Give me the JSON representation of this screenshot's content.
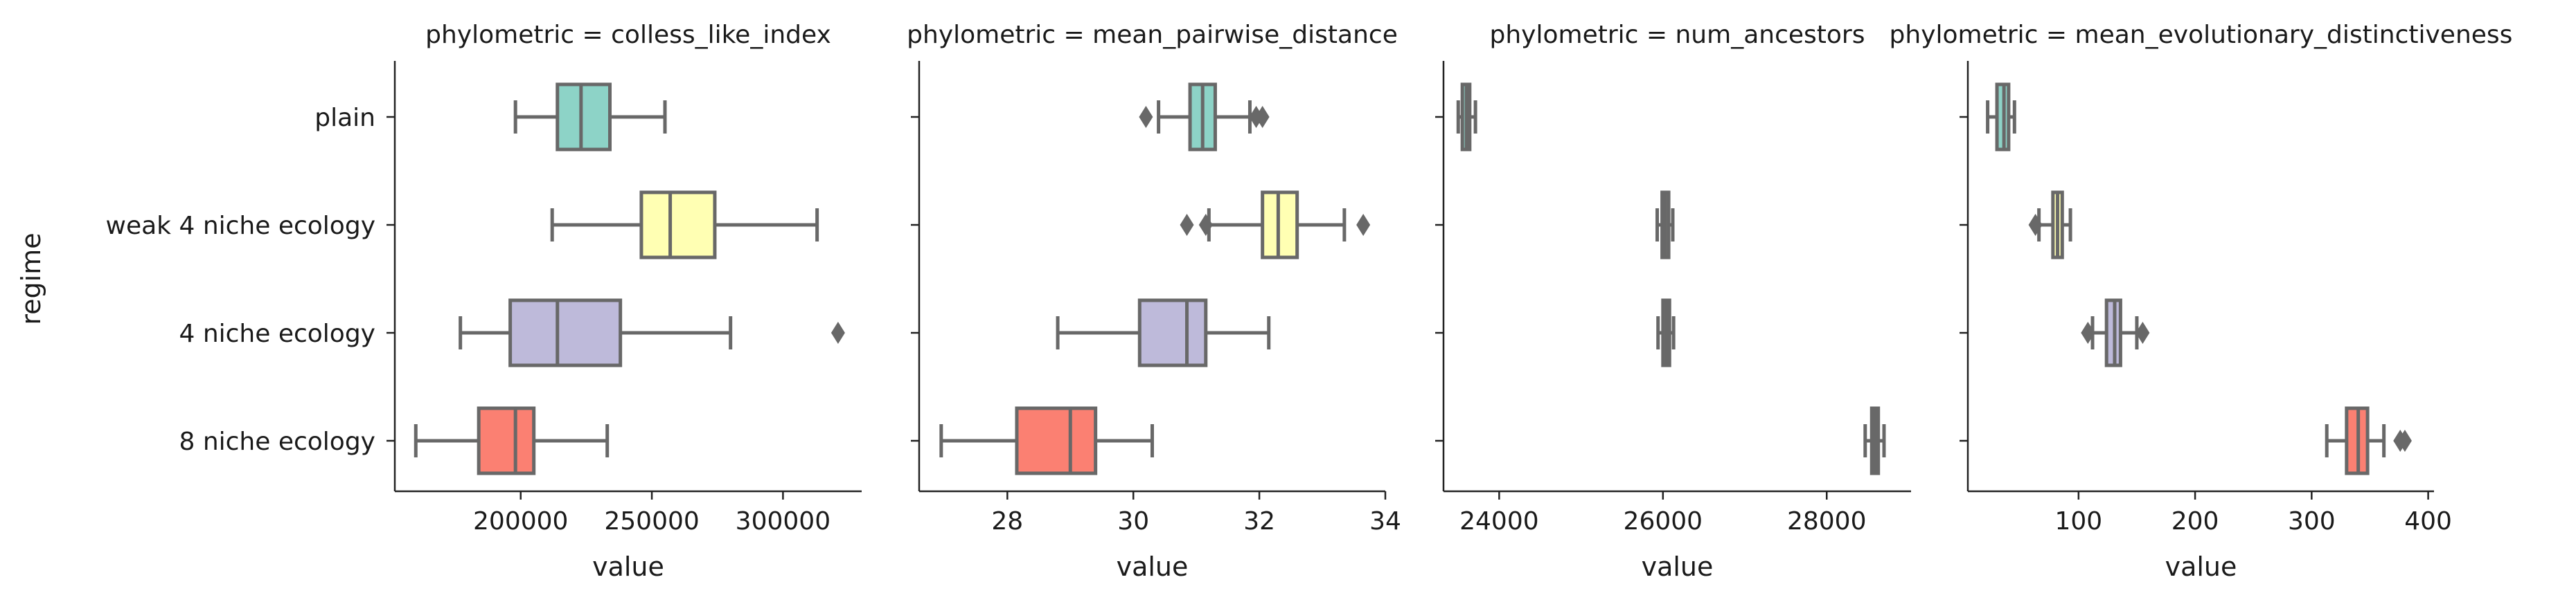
{
  "figure": {
    "ylabel": "regime",
    "xlabel": "value"
  },
  "chart_data": [
    {
      "type": "box",
      "title": "phylometric = colless_like_index",
      "xlabel": "value",
      "ylabel": "regime",
      "categories": [
        "plain",
        "weak 4 niche ecology",
        "4 niche ecology",
        "8 niche ecology"
      ],
      "colors": [
        "#8dd3c7",
        "#ffffb3",
        "#bebada",
        "#fb8072"
      ],
      "xlim": [
        152000,
        330000
      ],
      "xticks": [
        200000,
        250000,
        300000
      ],
      "xtick_labels": [
        "200000",
        "250000",
        "300000"
      ],
      "boxes": [
        {
          "whislo": 198000,
          "q1": 214000,
          "med": 223000,
          "q3": 234000,
          "whishi": 255000,
          "fliers": []
        },
        {
          "whislo": 212000,
          "q1": 246000,
          "med": 257000,
          "q3": 274000,
          "whishi": 313000,
          "fliers": []
        },
        {
          "whislo": 177000,
          "q1": 196000,
          "med": 214000,
          "q3": 238000,
          "whishi": 280000,
          "fliers": [
            321000
          ]
        },
        {
          "whislo": 160000,
          "q1": 184000,
          "med": 198000,
          "q3": 205000,
          "whishi": 233000,
          "fliers": []
        }
      ]
    },
    {
      "type": "box",
      "title": "phylometric = mean_pairwise_distance",
      "xlabel": "value",
      "categories": [
        "plain",
        "weak 4 niche ecology",
        "4 niche ecology",
        "8 niche ecology"
      ],
      "colors": [
        "#8dd3c7",
        "#ffffb3",
        "#bebada",
        "#fb8072"
      ],
      "xlim": [
        26.6,
        34.0
      ],
      "xticks": [
        28,
        30,
        32,
        34
      ],
      "xtick_labels": [
        "28",
        "30",
        "32",
        "34"
      ],
      "boxes": [
        {
          "whislo": 30.4,
          "q1": 30.9,
          "med": 31.1,
          "q3": 31.3,
          "whishi": 31.85,
          "fliers": [
            30.2,
            31.95,
            32.05
          ]
        },
        {
          "whislo": 31.2,
          "q1": 32.05,
          "med": 32.3,
          "q3": 32.6,
          "whishi": 33.35,
          "fliers": [
            30.85,
            31.15,
            33.65
          ]
        },
        {
          "whislo": 28.8,
          "q1": 30.1,
          "med": 30.85,
          "q3": 31.15,
          "whishi": 32.15,
          "fliers": []
        },
        {
          "whislo": 26.95,
          "q1": 28.15,
          "med": 29.0,
          "q3": 29.4,
          "whishi": 30.3,
          "fliers": []
        }
      ]
    },
    {
      "type": "box",
      "title": "phylometric = num_ancestors",
      "xlabel": "value",
      "categories": [
        "plain",
        "weak 4 niche ecology",
        "4 niche ecology",
        "8 niche ecology"
      ],
      "colors": [
        "#8dd3c7",
        "#ffffb3",
        "#bebada",
        "#fb8072"
      ],
      "xlim": [
        23320,
        29030
      ],
      "xticks": [
        24000,
        26000,
        28000
      ],
      "xtick_labels": [
        "24000",
        "26000",
        "28000"
      ],
      "boxes": [
        {
          "whislo": 23500,
          "q1": 23550,
          "med": 23600,
          "q3": 23640,
          "whishi": 23710,
          "fliers": []
        },
        {
          "whislo": 25930,
          "q1": 25990,
          "med": 26030,
          "q3": 26070,
          "whishi": 26120,
          "fliers": []
        },
        {
          "whislo": 25940,
          "q1": 26000,
          "med": 26040,
          "q3": 26080,
          "whishi": 26130,
          "fliers": []
        },
        {
          "whislo": 28470,
          "q1": 28550,
          "med": 28590,
          "q3": 28630,
          "whishi": 28700,
          "fliers": []
        }
      ]
    },
    {
      "type": "box",
      "title": "phylometric = mean_evolutionary_distinctiveness",
      "xlabel": "value",
      "categories": [
        "plain",
        "weak 4 niche ecology",
        "4 niche ecology",
        "8 niche ecology"
      ],
      "colors": [
        "#8dd3c7",
        "#ffffb3",
        "#bebada",
        "#fb8072"
      ],
      "xlim": [
        5,
        405
      ],
      "xticks": [
        100,
        200,
        300,
        400
      ],
      "xtick_labels": [
        "100",
        "200",
        "300",
        "400"
      ],
      "boxes": [
        {
          "whislo": 22,
          "q1": 30,
          "med": 36,
          "q3": 40,
          "whishi": 45,
          "fliers": []
        },
        {
          "whislo": 66,
          "q1": 78,
          "med": 82,
          "q3": 86,
          "whishi": 93,
          "fliers": [
            63
          ]
        },
        {
          "whislo": 112,
          "q1": 124,
          "med": 131,
          "q3": 136,
          "whishi": 150,
          "fliers": [
            108,
            155
          ]
        },
        {
          "whislo": 313,
          "q1": 330,
          "med": 340,
          "q3": 348,
          "whishi": 362,
          "fliers": [
            376,
            380
          ]
        }
      ]
    }
  ]
}
